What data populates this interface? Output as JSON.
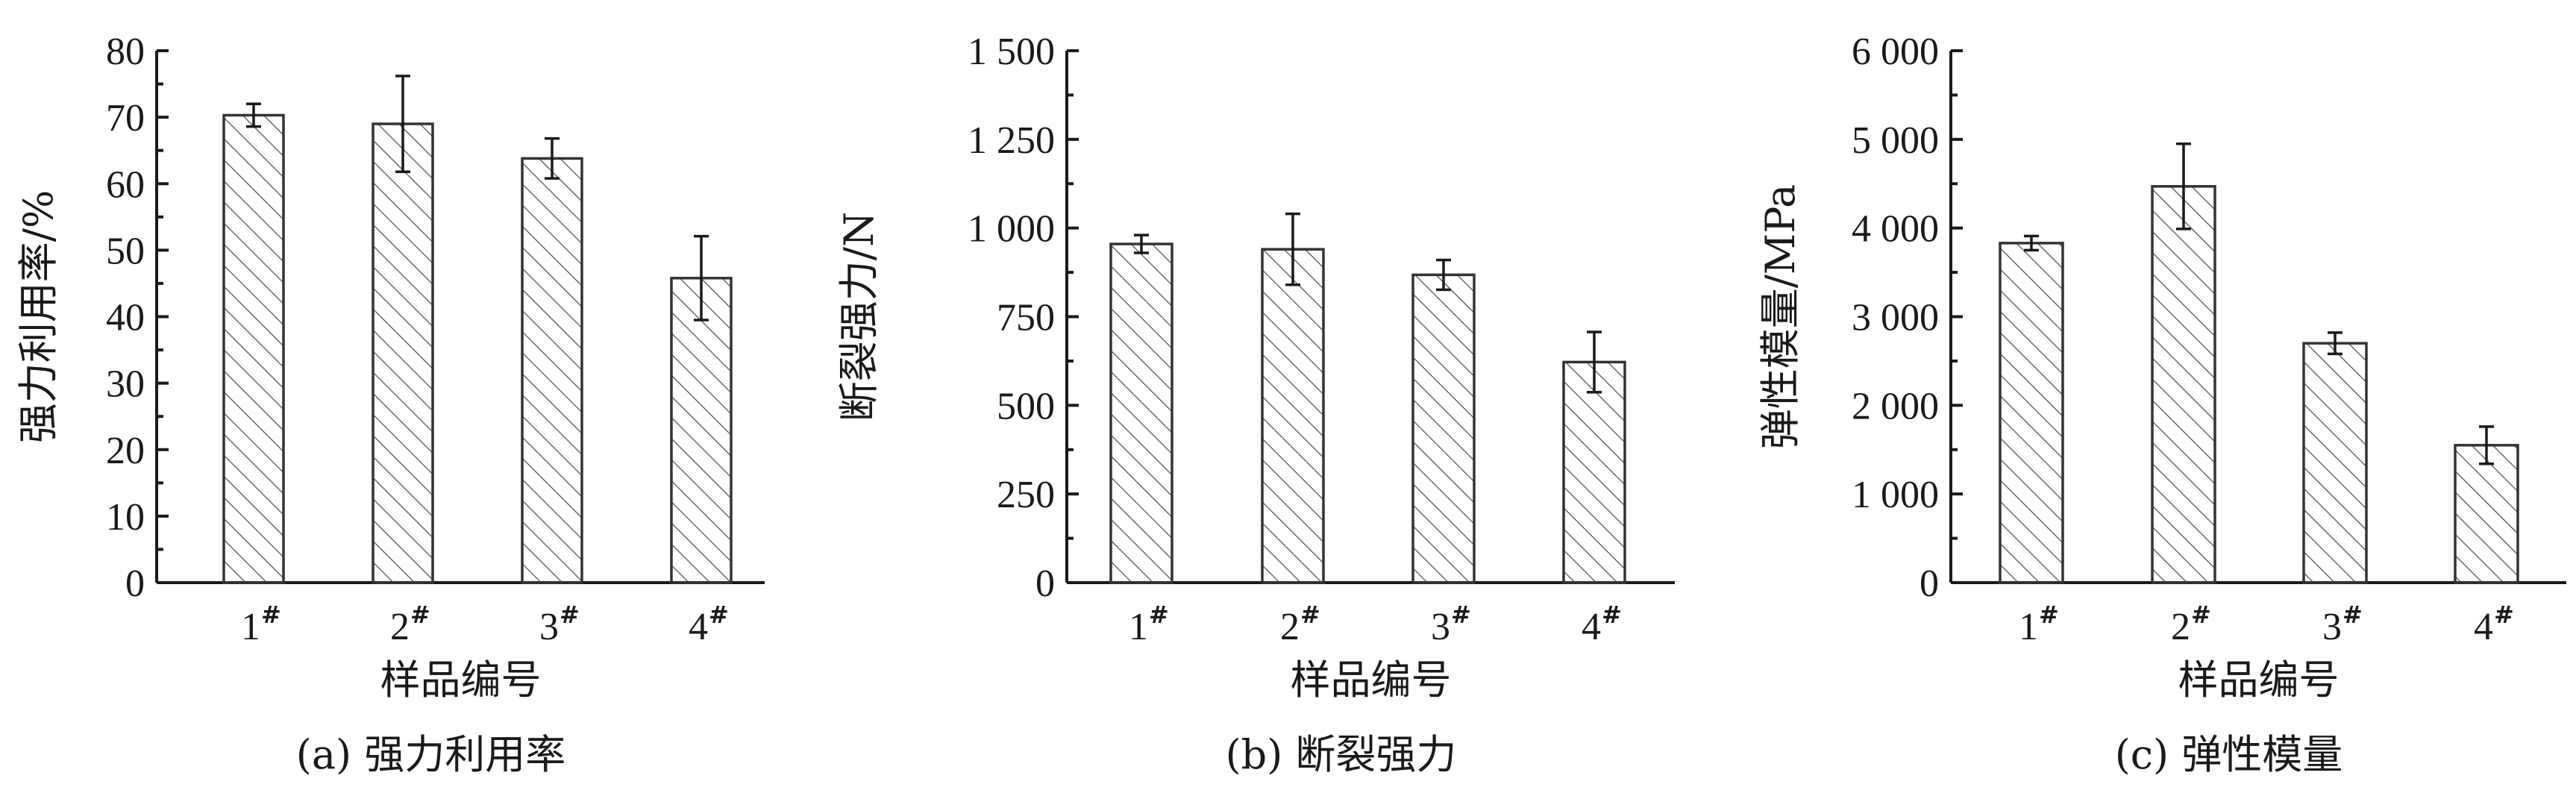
{
  "chart_data": [
    {
      "type": "bar",
      "categories": [
        "1",
        "2",
        "3",
        "4"
      ],
      "category_superscript": "#",
      "values": [
        70.3,
        69.0,
        63.8,
        45.8
      ],
      "errors": [
        1.7,
        7.2,
        3.0,
        6.3
      ],
      "ylabel": "强力利用率/%",
      "xlabel": "样品编号",
      "caption": "(a) 强力利用率",
      "ylim": [
        0,
        80
      ],
      "yticks": [
        0,
        10,
        20,
        30,
        40,
        50,
        60,
        70,
        80
      ],
      "ytick_labels": [
        "0",
        "10",
        "20",
        "30",
        "40",
        "50",
        "60",
        "70",
        "80"
      ]
    },
    {
      "type": "bar",
      "categories": [
        "1",
        "2",
        "3",
        "4"
      ],
      "category_superscript": "#",
      "values": [
        955,
        940,
        868,
        622
      ],
      "errors": [
        25,
        100,
        42,
        85
      ],
      "ylabel": "断裂强力/N",
      "xlabel": "样品编号",
      "caption": "(b) 断裂强力",
      "ylim": [
        0,
        1500
      ],
      "yticks": [
        0,
        250,
        500,
        750,
        1000,
        1250,
        1500
      ],
      "ytick_labels": [
        "0",
        "250",
        "500",
        "750",
        "1 000",
        "1 250",
        "1 500"
      ]
    },
    {
      "type": "bar",
      "categories": [
        "1",
        "2",
        "3",
        "4"
      ],
      "category_superscript": "#",
      "values": [
        3830,
        4470,
        2700,
        1550
      ],
      "errors": [
        80,
        480,
        120,
        210
      ],
      "ylabel": "弹性模量/MPa",
      "xlabel": "样品编号",
      "caption": "(c) 弹性模量",
      "ylim": [
        0,
        6000
      ],
      "yticks": [
        0,
        1000,
        2000,
        3000,
        4000,
        5000,
        6000
      ],
      "ytick_labels": [
        "0",
        "1 000",
        "2 000",
        "3 000",
        "4 000",
        "5 000",
        "6 000"
      ]
    }
  ]
}
